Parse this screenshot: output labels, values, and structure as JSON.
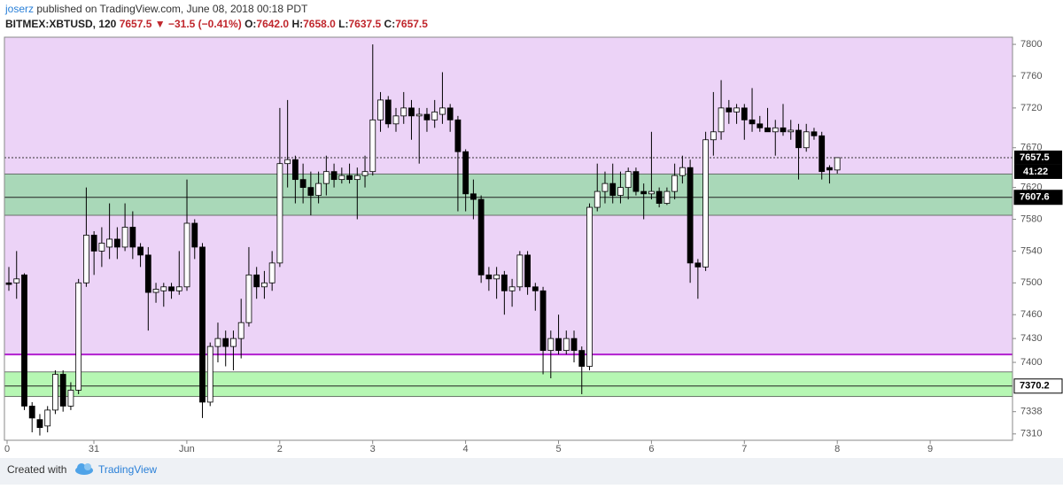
{
  "header": {
    "author": "joserz",
    "published": "published on TradingView.com, June 08, 2018 00:18 PDT",
    "symbol": "BITMEX:XBTUSD, 120",
    "last": "7657.5",
    "arrow": "▼",
    "change": "−31.5 (−0.41%)",
    "ohlc": [
      {
        "label": "O:",
        "value": "7642.0"
      },
      {
        "label": "H:",
        "value": "7658.0"
      },
      {
        "label": "L:",
        "value": "7637.5"
      },
      {
        "label": "C:",
        "value": "7657.5"
      }
    ]
  },
  "footer": {
    "created": "Created with",
    "brand": "TradingView"
  },
  "chart_data": {
    "type": "candlestick",
    "xtick_labels": [
      "0",
      "31",
      "Jun",
      "2",
      "3",
      "4",
      "5",
      "6",
      "7",
      "8",
      "9"
    ],
    "open": [
      7500,
      7500,
      7510,
      7345,
      7328,
      7320,
      7340,
      7385,
      7345,
      7365,
      7500,
      7560,
      7540,
      7545,
      7555,
      7545,
      7570,
      7545,
      7535,
      7488,
      7490,
      7495,
      7490,
      7495,
      7575,
      7545,
      7350,
      7420,
      7430,
      7420,
      7430,
      7450,
      7510,
      7495,
      7500,
      7525,
      7650,
      7655,
      7630,
      7620,
      7610,
      7625,
      7640,
      7630,
      7635,
      7630,
      7635,
      7640,
      7705,
      7730,
      7700,
      7710,
      7720,
      7710,
      7712,
      7705,
      7712,
      7720,
      7705,
      7665,
      7612,
      7605,
      7510,
      7505,
      7510,
      7490,
      7495,
      7535,
      7495,
      7490,
      7415,
      7430,
      7415,
      7430,
      7415,
      7395,
      7595,
      7615,
      7625,
      7610,
      7620,
      7640,
      7615,
      7612,
      7615,
      7600,
      7615,
      7635,
      7645,
      7525,
      7520,
      7680,
      7690,
      7720,
      7715,
      7720,
      7705,
      7700,
      7695,
      7690,
      7695,
      7690,
      7692,
      7670,
      7690,
      7685,
      7645,
      7642
    ],
    "high": [
      7520,
      7540,
      7512,
      7350,
      7335,
      7345,
      7390,
      7390,
      7375,
      7505,
      7620,
      7565,
      7570,
      7600,
      7570,
      7600,
      7590,
      7550,
      7545,
      7500,
      7500,
      7500,
      7540,
      7630,
      7580,
      7550,
      7425,
      7450,
      7440,
      7440,
      7480,
      7545,
      7520,
      7515,
      7540,
      7720,
      7730,
      7660,
      7650,
      7640,
      7640,
      7660,
      7650,
      7645,
      7650,
      7645,
      7660,
      7800,
      7740,
      7735,
      7720,
      7740,
      7730,
      7720,
      7720,
      7730,
      7765,
      7725,
      7710,
      7668,
      7630,
      7610,
      7520,
      7520,
      7515,
      7505,
      7540,
      7540,
      7500,
      7495,
      7440,
      7460,
      7440,
      7440,
      7420,
      7600,
      7650,
      7640,
      7650,
      7640,
      7645,
      7645,
      7625,
      7690,
      7620,
      7620,
      7650,
      7660,
      7655,
      7530,
      7690,
      7740,
      7755,
      7730,
      7725,
      7725,
      7745,
      7710,
      7720,
      7705,
      7725,
      7705,
      7700,
      7700,
      7695,
      7690,
      7648,
      7658
    ],
    "low": [
      7490,
      7480,
      7340,
      7312,
      7308,
      7312,
      7335,
      7338,
      7340,
      7360,
      7495,
      7510,
      7520,
      7530,
      7530,
      7540,
      7530,
      7520,
      7440,
      7475,
      7470,
      7480,
      7485,
      7490,
      7530,
      7330,
      7345,
      7400,
      7395,
      7390,
      7405,
      7445,
      7480,
      7480,
      7490,
      7520,
      7620,
      7600,
      7600,
      7585,
      7600,
      7610,
      7620,
      7625,
      7625,
      7580,
      7620,
      7635,
      7690,
      7695,
      7690,
      7700,
      7680,
      7650,
      7690,
      7695,
      7700,
      7690,
      7590,
      7590,
      7580,
      7500,
      7490,
      7480,
      7460,
      7470,
      7490,
      7485,
      7465,
      7385,
      7380,
      7410,
      7410,
      7400,
      7360,
      7390,
      7590,
      7600,
      7600,
      7600,
      7605,
      7610,
      7580,
      7605,
      7595,
      7598,
      7605,
      7625,
      7500,
      7480,
      7515,
      7660,
      7680,
      7700,
      7700,
      7680,
      7690,
      7690,
      7690,
      7660,
      7685,
      7680,
      7630,
      7665,
      7680,
      7630,
      7625,
      7637.5
    ],
    "close": [
      7498,
      7505,
      7345,
      7330,
      7318,
      7340,
      7385,
      7345,
      7365,
      7500,
      7560,
      7540,
      7550,
      7555,
      7545,
      7570,
      7545,
      7535,
      7488,
      7492,
      7495,
      7490,
      7495,
      7575,
      7545,
      7350,
      7420,
      7430,
      7420,
      7430,
      7450,
      7510,
      7495,
      7500,
      7525,
      7650,
      7655,
      7630,
      7620,
      7610,
      7625,
      7640,
      7630,
      7635,
      7630,
      7635,
      7640,
      7705,
      7730,
      7700,
      7710,
      7720,
      7710,
      7712,
      7705,
      7715,
      7720,
      7705,
      7665,
      7612,
      7605,
      7510,
      7505,
      7510,
      7490,
      7495,
      7535,
      7495,
      7490,
      7415,
      7430,
      7415,
      7430,
      7415,
      7395,
      7595,
      7615,
      7625,
      7610,
      7620,
      7640,
      7615,
      7612,
      7615,
      7600,
      7615,
      7635,
      7645,
      7525,
      7520,
      7680,
      7690,
      7720,
      7715,
      7720,
      7705,
      7700,
      7695,
      7690,
      7695,
      7690,
      7692,
      7670,
      7690,
      7685,
      7640,
      7642,
      7657.5
    ],
    "up_color": "#ffffff",
    "down_color": "#000000",
    "ylim": [
      7302,
      7809
    ],
    "yticks": [
      7800,
      7760,
      7720,
      7670,
      7620,
      7580,
      7540,
      7500,
      7460,
      7430,
      7400,
      7338,
      7310
    ],
    "purple_zone": {
      "from": 7410,
      "color": "#ecd3f7",
      "line_color": "#b21fd0"
    },
    "zones": [
      {
        "from": 7585,
        "to": 7637,
        "color": "#a9d8b8"
      },
      {
        "from": 7357,
        "to": 7388,
        "color": "#b6f7b3"
      }
    ],
    "levels": [
      {
        "value": 7607.6,
        "label_bg": "#000000",
        "label_fg": "#ffffff"
      },
      {
        "value": 7370.2,
        "label_bg": "#ffffff",
        "label_fg": "#000000"
      }
    ],
    "last_price": 7657.5,
    "countdown": "41:22"
  }
}
